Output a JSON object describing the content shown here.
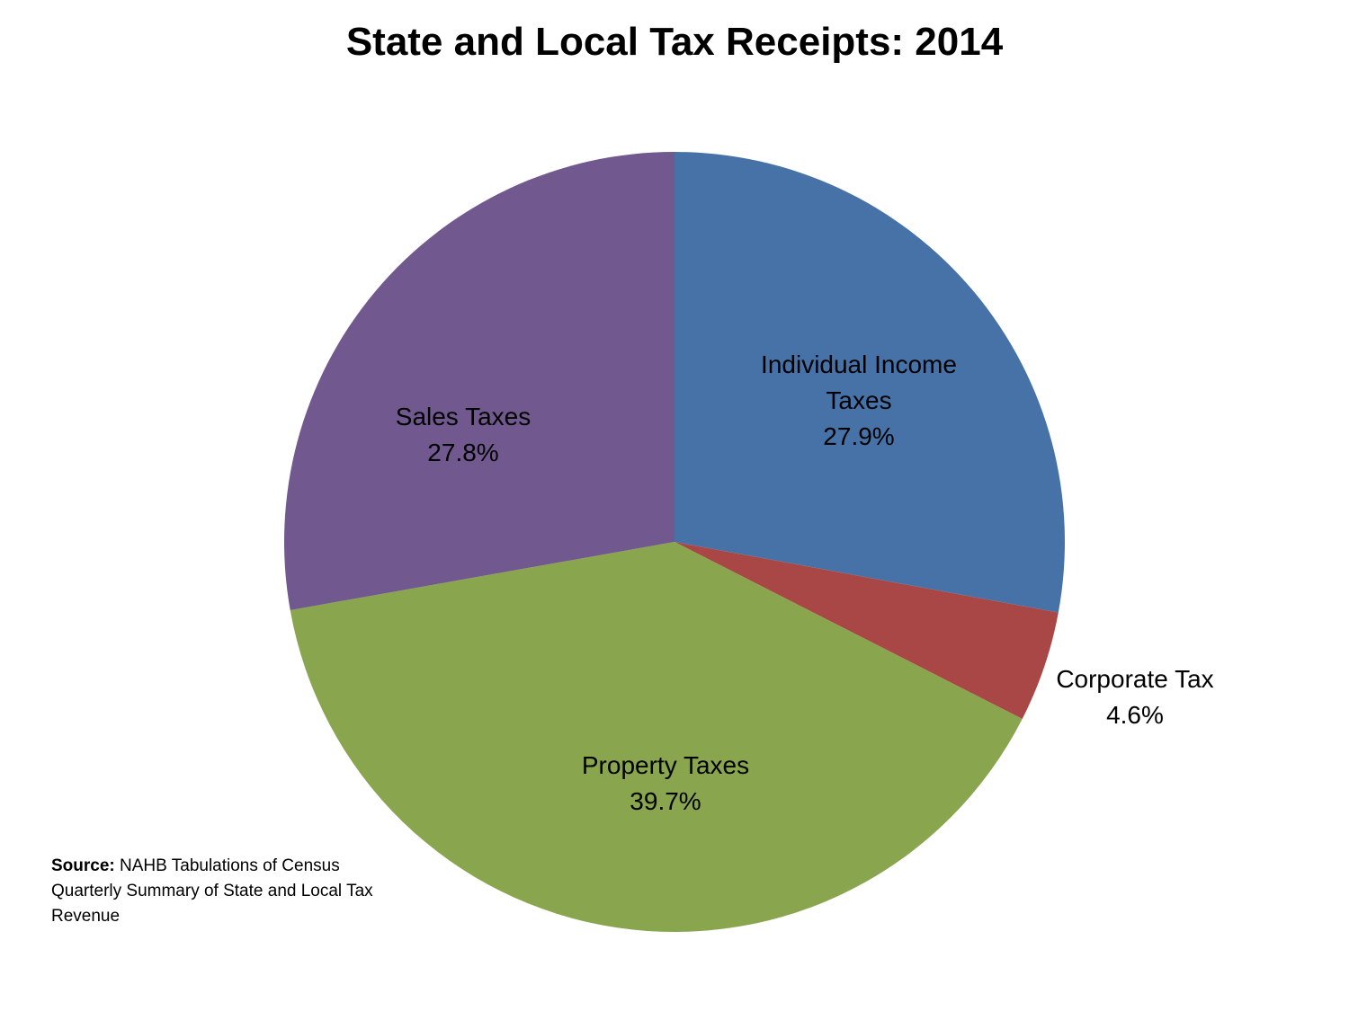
{
  "chart_data": {
    "type": "pie",
    "title": "State and Local Tax Receipts: 2014",
    "start_angle_deg": 0,
    "direction": "clockwise",
    "slices": [
      {
        "name": "Individual Income Taxes",
        "label_lines": [
          "Individual Income",
          "Taxes"
        ],
        "value": 27.9,
        "value_label": "27.9%",
        "color": "#4672A8"
      },
      {
        "name": "Corporate Tax",
        "label_lines": [
          "Corporate Tax"
        ],
        "value": 4.6,
        "value_label": "4.6%",
        "color": "#A84746"
      },
      {
        "name": "Property Taxes",
        "label_lines": [
          "Property Taxes"
        ],
        "value": 39.7,
        "value_label": "39.7%",
        "color": "#89A54E"
      },
      {
        "name": "Sales Taxes",
        "label_lines": [
          "Sales Taxes"
        ],
        "value": 27.8,
        "value_label": "27.8%",
        "color": "#71588F"
      }
    ]
  },
  "source": {
    "label": "Source:",
    "text": "NAHB Tabulations of Census Quarterly Summary of State and Local Tax Revenue"
  }
}
